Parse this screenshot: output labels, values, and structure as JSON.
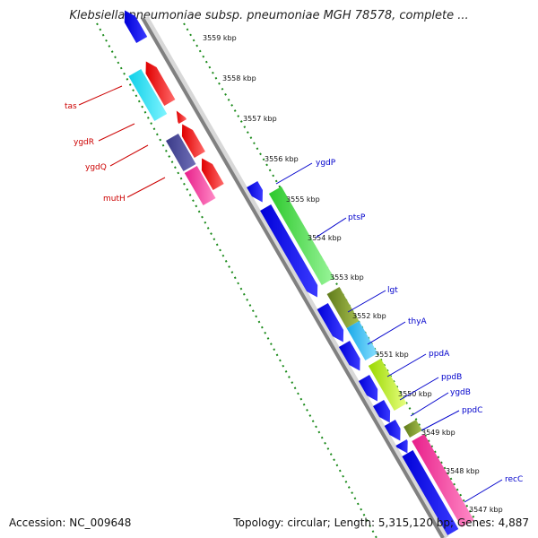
{
  "title": "Klebsiella pneumoniae subsp. pneumoniae MGH 78578, complete ...",
  "footer": {
    "accession": "Accession: NC_009648",
    "summary": "Topology: circular; Length: 5,315,120 bp; Genes: 4,887"
  },
  "colors": {
    "forward_label": "#0000cc",
    "reverse_label": "#cc0000",
    "backbone": "#808080",
    "tick_dots": "#1a8a1a"
  },
  "ticks": [
    "3559 kbp",
    "3558 kbp",
    "3557 kbp",
    "3556 kbp",
    "3555 kbp",
    "3554 kbp",
    "3553 kbp",
    "3552 kbp",
    "3551 kbp",
    "3550 kbp",
    "3549 kbp",
    "3548 kbp",
    "3547 kbp"
  ],
  "genes_reverse": [
    {
      "name": "tas"
    },
    {
      "name": "ygdR"
    },
    {
      "name": "ygdQ"
    },
    {
      "name": "mutH"
    }
  ],
  "genes_forward": [
    {
      "name": "ygdP"
    },
    {
      "name": "ptsP"
    },
    {
      "name": "lgt"
    },
    {
      "name": "thyA"
    },
    {
      "name": "ppdA"
    },
    {
      "name": "ppdB"
    },
    {
      "name": "ygdB"
    },
    {
      "name": "ppdC"
    },
    {
      "name": "recC"
    }
  ]
}
